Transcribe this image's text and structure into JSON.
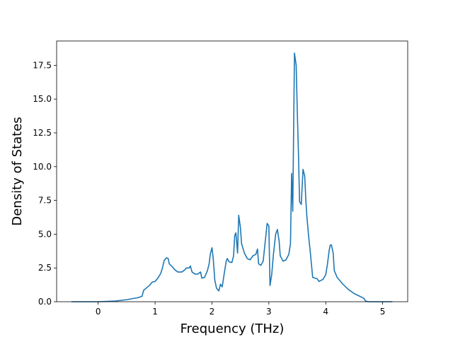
{
  "chart_data": {
    "type": "line",
    "title": "",
    "xlabel": "Frequency (THz)",
    "ylabel": "Density of States",
    "xlim": [
      -0.73,
      5.44
    ],
    "ylim": [
      0,
      19.3
    ],
    "xticks": [
      0,
      1,
      2,
      3,
      4,
      5
    ],
    "yticks": [
      0.0,
      2.5,
      5.0,
      7.5,
      10.0,
      12.5,
      15.0,
      17.5
    ],
    "grid": false,
    "legend": "none",
    "series": [
      {
        "color": "#1f77b4",
        "points": [
          [
            -0.47,
            0.0
          ],
          [
            0.0,
            0.0
          ],
          [
            0.3,
            0.05
          ],
          [
            0.5,
            0.15
          ],
          [
            0.7,
            0.3
          ],
          [
            0.77,
            0.4
          ],
          [
            0.8,
            0.85
          ],
          [
            0.9,
            1.2
          ],
          [
            0.95,
            1.45
          ],
          [
            1.0,
            1.5
          ],
          [
            1.05,
            1.75
          ],
          [
            1.1,
            2.1
          ],
          [
            1.13,
            2.5
          ],
          [
            1.16,
            3.05
          ],
          [
            1.2,
            3.25
          ],
          [
            1.23,
            3.2
          ],
          [
            1.25,
            2.8
          ],
          [
            1.3,
            2.6
          ],
          [
            1.35,
            2.35
          ],
          [
            1.4,
            2.2
          ],
          [
            1.47,
            2.2
          ],
          [
            1.52,
            2.35
          ],
          [
            1.55,
            2.5
          ],
          [
            1.6,
            2.5
          ],
          [
            1.62,
            2.65
          ],
          [
            1.65,
            2.2
          ],
          [
            1.7,
            2.05
          ],
          [
            1.75,
            2.05
          ],
          [
            1.8,
            2.2
          ],
          [
            1.82,
            1.75
          ],
          [
            1.87,
            1.8
          ],
          [
            1.92,
            2.3
          ],
          [
            1.95,
            2.8
          ],
          [
            1.97,
            3.5
          ],
          [
            2.0,
            4.0
          ],
          [
            2.02,
            3.3
          ],
          [
            2.05,
            1.6
          ],
          [
            2.08,
            1.0
          ],
          [
            2.12,
            0.8
          ],
          [
            2.15,
            1.3
          ],
          [
            2.18,
            1.1
          ],
          [
            2.22,
            2.2
          ],
          [
            2.25,
            3.0
          ],
          [
            2.27,
            3.2
          ],
          [
            2.3,
            2.95
          ],
          [
            2.35,
            2.9
          ],
          [
            2.38,
            3.4
          ],
          [
            2.4,
            4.9
          ],
          [
            2.42,
            5.1
          ],
          [
            2.45,
            3.6
          ],
          [
            2.47,
            6.4
          ],
          [
            2.5,
            5.5
          ],
          [
            2.52,
            4.3
          ],
          [
            2.57,
            3.6
          ],
          [
            2.62,
            3.2
          ],
          [
            2.67,
            3.1
          ],
          [
            2.72,
            3.4
          ],
          [
            2.77,
            3.5
          ],
          [
            2.8,
            3.9
          ],
          [
            2.82,
            2.8
          ],
          [
            2.86,
            2.7
          ],
          [
            2.9,
            3.0
          ],
          [
            2.95,
            5.0
          ],
          [
            2.97,
            5.8
          ],
          [
            3.0,
            5.6
          ],
          [
            3.02,
            1.2
          ],
          [
            3.05,
            2.0
          ],
          [
            3.08,
            3.5
          ],
          [
            3.12,
            5.0
          ],
          [
            3.15,
            5.35
          ],
          [
            3.18,
            4.5
          ],
          [
            3.2,
            3.4
          ],
          [
            3.25,
            3.0
          ],
          [
            3.3,
            3.1
          ],
          [
            3.35,
            3.5
          ],
          [
            3.38,
            4.3
          ],
          [
            3.4,
            9.5
          ],
          [
            3.42,
            6.7
          ],
          [
            3.45,
            18.4
          ],
          [
            3.48,
            17.5
          ],
          [
            3.5,
            14.0
          ],
          [
            3.52,
            11.0
          ],
          [
            3.54,
            7.4
          ],
          [
            3.57,
            7.2
          ],
          [
            3.6,
            9.8
          ],
          [
            3.63,
            9.3
          ],
          [
            3.65,
            7.5
          ],
          [
            3.67,
            6.2
          ],
          [
            3.7,
            4.8
          ],
          [
            3.73,
            3.6
          ],
          [
            3.77,
            1.8
          ],
          [
            3.85,
            1.7
          ],
          [
            3.88,
            1.5
          ],
          [
            3.95,
            1.65
          ],
          [
            4.0,
            2.0
          ],
          [
            4.03,
            2.8
          ],
          [
            4.06,
            3.8
          ],
          [
            4.08,
            4.2
          ],
          [
            4.1,
            4.2
          ],
          [
            4.13,
            3.6
          ],
          [
            4.15,
            2.3
          ],
          [
            4.2,
            1.8
          ],
          [
            4.3,
            1.3
          ],
          [
            4.4,
            0.9
          ],
          [
            4.5,
            0.6
          ],
          [
            4.6,
            0.4
          ],
          [
            4.67,
            0.25
          ],
          [
            4.7,
            0.05
          ],
          [
            4.75,
            0.0
          ],
          [
            5.17,
            0.0
          ]
        ]
      }
    ]
  }
}
